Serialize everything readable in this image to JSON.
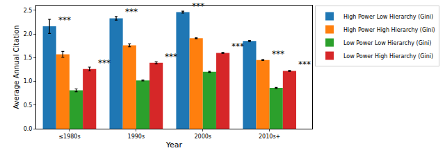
{
  "chart_data": {
    "type": "bar",
    "x_label": "Year",
    "y_label": "Average Annual Citation",
    "categories": [
      "≤1980s",
      "1990s",
      "2000s",
      "2010s+"
    ],
    "series": [
      {
        "name": "High Power Low Hierarchy (Gini)",
        "color": "#1f77b4",
        "values": [
          2.16,
          2.33,
          2.46,
          1.85
        ],
        "errors": [
          0.15,
          0.04,
          0.02,
          0.01
        ]
      },
      {
        "name": "High Power High Hierarchy (Gini)",
        "color": "#ff7f0e",
        "values": [
          1.57,
          1.76,
          1.91,
          1.45
        ],
        "errors": [
          0.06,
          0.03,
          0.01,
          0.01
        ]
      },
      {
        "name": "Low Power Low Hierarchy (Gini)",
        "color": "#2ca02c",
        "values": [
          0.81,
          1.02,
          1.2,
          0.86
        ],
        "errors": [
          0.03,
          0.01,
          0.01,
          0.01
        ]
      },
      {
        "name": "Low Power High Hierarchy (Gini)",
        "color": "#d62728",
        "values": [
          1.26,
          1.39,
          1.6,
          1.22
        ],
        "errors": [
          0.04,
          0.02,
          0.01,
          0.01
        ]
      }
    ],
    "annotations": [
      {
        "text": "***",
        "category": "≤1980s",
        "series": "High Power Low Hierarchy (Gini)"
      },
      {
        "text": "***",
        "category": "≤1980s",
        "series": "Low Power High Hierarchy (Gini)"
      },
      {
        "text": "***",
        "category": "1990s",
        "series": "High Power Low Hierarchy (Gini)"
      },
      {
        "text": "***",
        "category": "1990s",
        "series": "Low Power High Hierarchy (Gini)"
      },
      {
        "text": "***",
        "category": "2000s",
        "series": "High Power Low Hierarchy (Gini)"
      },
      {
        "text": "***",
        "category": "2000s",
        "series": "Low Power High Hierarchy (Gini)"
      },
      {
        "text": "***",
        "category": "2010s+",
        "series": "High Power High Hierarchy (Gini)"
      },
      {
        "text": "***",
        "category": "2010s+",
        "series": "Low Power High Hierarchy (Gini)"
      }
    ],
    "ylim": [
      0,
      2.6
    ],
    "yticks": [
      {
        "value": 0,
        "label": "0.0"
      },
      0.5,
      {
        "value": 1,
        "label": "1.0"
      },
      1.5,
      {
        "value": 2,
        "label": "2.0"
      },
      2.5
    ],
    "grid": false,
    "legend": "right"
  }
}
